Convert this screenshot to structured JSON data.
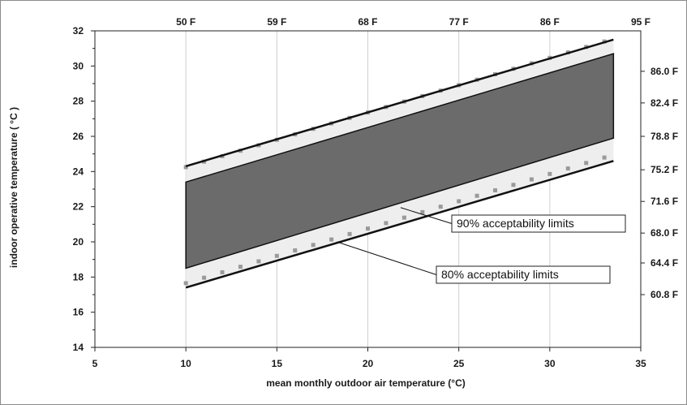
{
  "chart_data": {
    "type": "line",
    "title": "",
    "xlabel": "mean monthly outdoor air temperature (°C)",
    "ylabel": "indoor operative temperature ( °C )",
    "xlim": [
      5,
      35
    ],
    "ylim": [
      14,
      32
    ],
    "x_ticks": [
      5,
      10,
      15,
      20,
      25,
      30,
      35
    ],
    "y_ticks": [
      14,
      16,
      18,
      20,
      22,
      24,
      26,
      28,
      30,
      32
    ],
    "top_axis_ticks": [
      {
        "x": 10,
        "label": "50 F"
      },
      {
        "x": 15,
        "label": "59 F"
      },
      {
        "x": 20,
        "label": "68 F"
      },
      {
        "x": 25,
        "label": "77 F"
      },
      {
        "x": 30,
        "label": "86 F"
      },
      {
        "x": 35,
        "label": "95 F"
      }
    ],
    "right_axis_ticks": [
      {
        "y": 17,
        "label": "60.8 F"
      },
      {
        "y": 18.8,
        "label": "64.4 F"
      },
      {
        "y": 20.5,
        "label": "68.0 F"
      },
      {
        "y": 22.3,
        "label": "71.6 F"
      },
      {
        "y": 24.1,
        "label": "75.2 F"
      },
      {
        "y": 26.0,
        "label": "78.8 F"
      },
      {
        "y": 27.9,
        "label": "82.4 F"
      },
      {
        "y": 29.7,
        "label": "86.0 F"
      }
    ],
    "grid": {
      "vertical": true,
      "horizontal": false
    },
    "series": [
      {
        "name": "80% acceptability limits",
        "x": [
          10,
          33.5
        ],
        "upper": [
          24.3,
          31.5
        ],
        "lower": [
          17.4,
          24.6
        ]
      },
      {
        "name": "90% acceptability limits",
        "x": [
          10,
          33.5
        ],
        "upper": [
          23.4,
          30.7
        ],
        "lower": [
          18.5,
          25.9
        ]
      }
    ],
    "dots": {
      "x": [
        10,
        11,
        12,
        13,
        14,
        15,
        16,
        17,
        18,
        19,
        20,
        21,
        22,
        23,
        24,
        25,
        26,
        27,
        28,
        29,
        30,
        31,
        32,
        33
      ],
      "offsets": [
        3.5,
        -3.5
      ]
    },
    "annotations": [
      {
        "text": "90% acceptability limits",
        "target": {
          "x": 21.8,
          "y": 21.95
        }
      },
      {
        "text": "80% acceptability limits",
        "target": {
          "x": 18.3,
          "y": 20.0
        }
      }
    ],
    "colors": {
      "band90": "#6b6b6b",
      "band80": "#eeeeee",
      "line": "#111111",
      "dots": "#9a9a9a",
      "grid": "#cfcfcf"
    }
  }
}
